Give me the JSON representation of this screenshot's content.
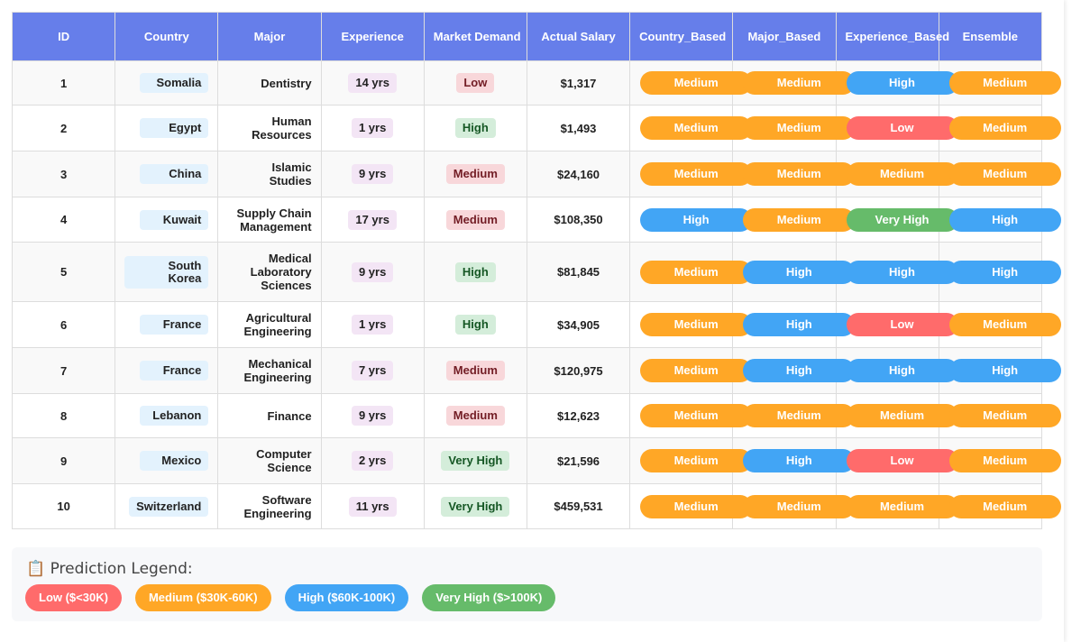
{
  "headers": [
    "ID",
    "Country",
    "Major",
    "Experience",
    "Market Demand",
    "Actual Salary",
    "Country_Based",
    "Major_Based",
    "Experience_Based",
    "Ensemble"
  ],
  "rows": [
    {
      "id": "1",
      "country": "Somalia",
      "major": "Dentistry",
      "exp": "14 yrs",
      "demand": "Low",
      "salary": "$1,317",
      "preds": [
        "Medium",
        "Medium",
        "High",
        "Medium"
      ]
    },
    {
      "id": "2",
      "country": "Egypt",
      "major": "Human Resources",
      "exp": "1 yrs",
      "demand": "High",
      "salary": "$1,493",
      "preds": [
        "Medium",
        "Medium",
        "Low",
        "Medium"
      ]
    },
    {
      "id": "3",
      "country": "China",
      "major": "Islamic Studies",
      "exp": "9 yrs",
      "demand": "Medium",
      "salary": "$24,160",
      "preds": [
        "Medium",
        "Medium",
        "Medium",
        "Medium"
      ]
    },
    {
      "id": "4",
      "country": "Kuwait",
      "major": "Supply Chain Management",
      "exp": "17 yrs",
      "demand": "Medium",
      "salary": "$108,350",
      "preds": [
        "High",
        "Medium",
        "Very High",
        "High"
      ]
    },
    {
      "id": "5",
      "country": "South Korea",
      "major": "Medical Laboratory Sciences",
      "exp": "9 yrs",
      "demand": "High",
      "salary": "$81,845",
      "preds": [
        "Medium",
        "High",
        "High",
        "High"
      ]
    },
    {
      "id": "6",
      "country": "France",
      "major": "Agricultural Engineering",
      "exp": "1 yrs",
      "demand": "High",
      "salary": "$34,905",
      "preds": [
        "Medium",
        "High",
        "Low",
        "Medium"
      ]
    },
    {
      "id": "7",
      "country": "France",
      "major": "Mechanical Engineering",
      "exp": "7 yrs",
      "demand": "Medium",
      "salary": "$120,975",
      "preds": [
        "Medium",
        "High",
        "High",
        "High"
      ]
    },
    {
      "id": "8",
      "country": "Lebanon",
      "major": "Finance",
      "exp": "9 yrs",
      "demand": "Medium",
      "salary": "$12,623",
      "preds": [
        "Medium",
        "Medium",
        "Medium",
        "Medium"
      ]
    },
    {
      "id": "9",
      "country": "Mexico",
      "major": "Computer Science",
      "exp": "2 yrs",
      "demand": "Very High",
      "salary": "$21,596",
      "preds": [
        "Medium",
        "High",
        "Low",
        "Medium"
      ]
    },
    {
      "id": "10",
      "country": "Switzerland",
      "major": "Software Engineering",
      "exp": "11 yrs",
      "demand": "Very High",
      "salary": "$459,531",
      "preds": [
        "Medium",
        "Medium",
        "Medium",
        "Medium"
      ]
    }
  ],
  "legend": {
    "icon": "clipboard-icon",
    "title": "📋 Prediction Legend:",
    "items": [
      {
        "label": "Low ($<30K)",
        "level": "Low"
      },
      {
        "label": "Medium ($30K-60K)",
        "level": "Medium"
      },
      {
        "label": "High ($60K-100K)",
        "level": "High"
      },
      {
        "label": "Very High ($>100K)",
        "level": "Very High"
      }
    ]
  },
  "colors": {
    "header": "#667eea",
    "low": "#ff6b6b",
    "medium": "#ffa726",
    "high": "#42a5f5",
    "very_high": "#66bb6a"
  }
}
